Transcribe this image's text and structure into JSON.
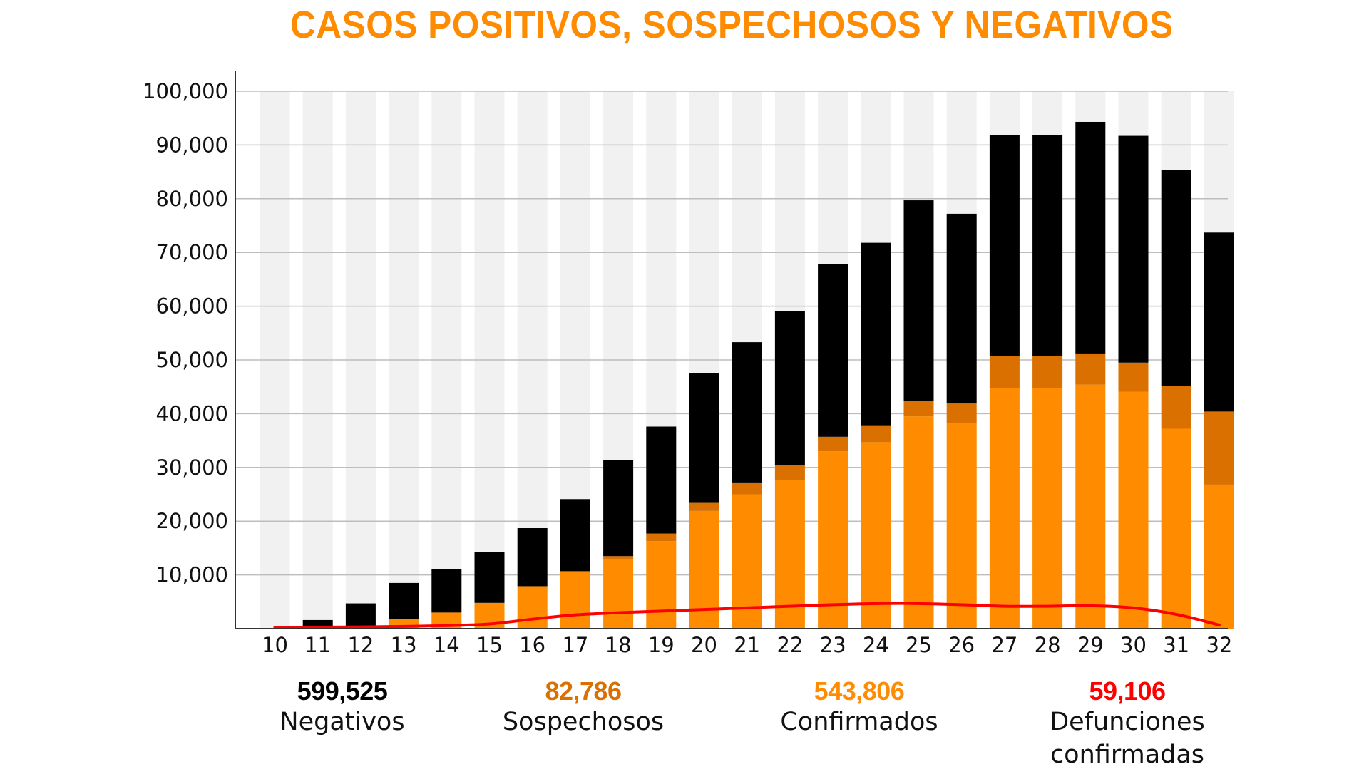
{
  "title": "CASOS POSITIVOS, SOSPECHOSOS Y NEGATIVOS",
  "colors": {
    "negativos": "#000000",
    "sospechosos": "#d97000",
    "confirmados": "#ff8c00",
    "defunciones": "#ff0000",
    "title": "#ff8c00",
    "band": "#f1f1f1",
    "grid": "#bdbdbd"
  },
  "chart_data": {
    "type": "bar",
    "stacked": true,
    "title": "CASOS POSITIVOS, SOSPECHOSOS Y NEGATIVOS",
    "xlabel": "",
    "ylabel": "",
    "ylim": [
      0,
      100000
    ],
    "yticks": [
      "10,000",
      "20,000",
      "30,000",
      "40,000",
      "50,000",
      "60,000",
      "70,000",
      "80,000",
      "90,000",
      "100,000"
    ],
    "grid": true,
    "categories": [
      "10",
      "11",
      "12",
      "13",
      "14",
      "15",
      "16",
      "17",
      "18",
      "19",
      "20",
      "21",
      "22",
      "23",
      "24",
      "25",
      "26",
      "27",
      "28",
      "29",
      "30",
      "31",
      "32"
    ],
    "series": [
      {
        "name": "Confirmados",
        "type": "bar",
        "values": [
          0,
          100,
          500,
          1800,
          3000,
          4800,
          7900,
          10500,
          13000,
          16300,
          21900,
          25000,
          27700,
          33000,
          34700,
          39500,
          38300,
          44800,
          44800,
          45400,
          44100,
          37200,
          26800
        ]
      },
      {
        "name": "Sospechosos",
        "type": "bar",
        "values": [
          0,
          0,
          0,
          0,
          0,
          0,
          0,
          200,
          500,
          1400,
          1500,
          2200,
          2700,
          2700,
          3000,
          2900,
          3600,
          5900,
          5900,
          5800,
          5400,
          7900,
          13600
        ]
      },
      {
        "name": "Negativos",
        "type": "bar",
        "values": [
          0,
          1500,
          4200,
          6700,
          8100,
          9400,
          10800,
          13400,
          17900,
          19900,
          24100,
          26100,
          28700,
          32100,
          34100,
          37300,
          35300,
          41100,
          41100,
          43100,
          42200,
          40300,
          33300
        ]
      },
      {
        "name": "Defunciones confirmadas",
        "type": "line",
        "values": [
          0,
          0,
          50,
          150,
          300,
          600,
          1500,
          2300,
          2700,
          3000,
          3300,
          3600,
          3900,
          4200,
          4400,
          4400,
          4200,
          3900,
          3900,
          4000,
          3600,
          2400,
          400
        ]
      }
    ]
  },
  "summary": [
    {
      "value": "599,525",
      "label": "Negativos",
      "color": "#000000"
    },
    {
      "value": "82,786",
      "label": "Sospechosos",
      "color": "#d97000"
    },
    {
      "value": "543,806",
      "label": "Confirmados",
      "color": "#ff8c00"
    },
    {
      "value": "59,106",
      "label": "Defunciones\nconfirmadas",
      "color": "#ff0000"
    }
  ]
}
